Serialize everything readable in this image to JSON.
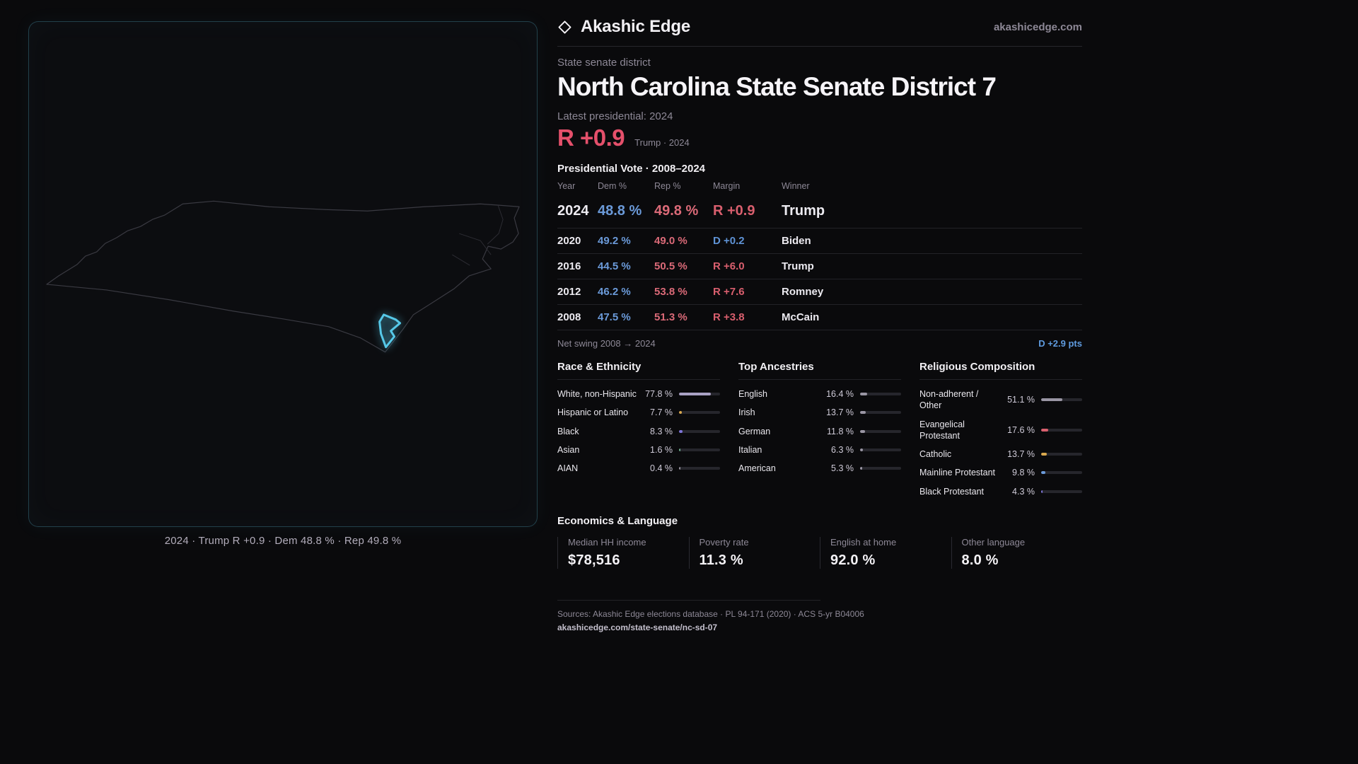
{
  "brand": {
    "name": "Akashic Edge",
    "site": "akashicedge.com",
    "logo_icon": "diamond-icon"
  },
  "map": {
    "caption": "2024 · Trump R +0.9 · Dem 48.8 % · Rep 49.8 %",
    "district_color": "#56c8e8",
    "outline_color": "#3a3a42"
  },
  "header": {
    "kicker": "State senate district",
    "title": "North Carolina State Senate District 7",
    "latest_label": "Latest presidential: 2024",
    "margin_value": "R +0.9",
    "margin_context": "Trump · 2024"
  },
  "vote": {
    "title": "Presidential Vote · 2008–2024",
    "columns": [
      "Year",
      "Dem %",
      "Rep %",
      "Margin",
      "Winner"
    ],
    "rows": [
      {
        "year": "2024",
        "dem": "48.8 %",
        "rep": "49.8 %",
        "margin": "R +0.9",
        "margin_party": "R",
        "winner": "Trump",
        "highlight": true
      },
      {
        "year": "2020",
        "dem": "49.2 %",
        "rep": "49.0 %",
        "margin": "D +0.2",
        "margin_party": "D",
        "winner": "Biden",
        "highlight": false
      },
      {
        "year": "2016",
        "dem": "44.5 %",
        "rep": "50.5 %",
        "margin": "R +6.0",
        "margin_party": "R",
        "winner": "Trump",
        "highlight": false
      },
      {
        "year": "2012",
        "dem": "46.2 %",
        "rep": "53.8 %",
        "margin": "R +7.6",
        "margin_party": "R",
        "winner": "Romney",
        "highlight": false
      },
      {
        "year": "2008",
        "dem": "47.5 %",
        "rep": "51.3 %",
        "margin": "R +3.8",
        "margin_party": "R",
        "winner": "McCain",
        "highlight": false
      }
    ]
  },
  "swing": {
    "label": "Net swing 2008 → 2024",
    "value": "D +2.9 pts"
  },
  "demographics": [
    {
      "title": "Race & Ethnicity",
      "items": [
        {
          "label": "White, non-Hispanic",
          "value": "77.8 %",
          "pct": 77.8,
          "color": "#a9a1c4"
        },
        {
          "label": "Hispanic or Latino",
          "value": "7.7 %",
          "pct": 7.7,
          "color": "#d9a84e"
        },
        {
          "label": "Black",
          "value": "8.3 %",
          "pct": 8.3,
          "color": "#7d74d8"
        },
        {
          "label": "Asian",
          "value": "1.6 %",
          "pct": 1.6,
          "color": "#6fae8f"
        },
        {
          "label": "AIAN",
          "value": "0.4 %",
          "pct": 0.4,
          "color": "#98939f"
        }
      ]
    },
    {
      "title": "Top Ancestries",
      "items": [
        {
          "label": "English",
          "value": "16.4 %",
          "pct": 16.4,
          "color": "#9a96a4"
        },
        {
          "label": "Irish",
          "value": "13.7 %",
          "pct": 13.7,
          "color": "#9a96a4"
        },
        {
          "label": "German",
          "value": "11.8 %",
          "pct": 11.8,
          "color": "#9a96a4"
        },
        {
          "label": "Italian",
          "value": "6.3 %",
          "pct": 6.3,
          "color": "#9a96a4"
        },
        {
          "label": "American",
          "value": "5.3 %",
          "pct": 5.3,
          "color": "#9a96a4"
        }
      ]
    },
    {
      "title": "Religious Composition",
      "items": [
        {
          "label": "Non-adherent / Other",
          "value": "51.1 %",
          "pct": 51.1,
          "color": "#9a96a4"
        },
        {
          "label": "Evangelical Protestant",
          "value": "17.6 %",
          "pct": 17.6,
          "color": "#d9606e"
        },
        {
          "label": "Catholic",
          "value": "13.7 %",
          "pct": 13.7,
          "color": "#d9a84e"
        },
        {
          "label": "Mainline Protestant",
          "value": "9.8 %",
          "pct": 9.8,
          "color": "#6b9ad9"
        },
        {
          "label": "Black Protestant",
          "value": "4.3 %",
          "pct": 4.3,
          "color": "#7d74d8"
        }
      ]
    }
  ],
  "economics": {
    "title": "Economics & Language",
    "stats": [
      {
        "key": "median-hh-income",
        "label": "Median HH income",
        "value": "$78,516"
      },
      {
        "key": "poverty-rate",
        "label": "Poverty rate",
        "value": "11.3 %"
      },
      {
        "key": "english-at-home",
        "label": "English at home",
        "value": "92.0 %"
      },
      {
        "key": "other-language",
        "label": "Other language",
        "value": "8.0 %"
      }
    ]
  },
  "footer": {
    "sources": "Sources: Akashic Edge elections database · PL 94-171 (2020) · ACS 5-yr B04006",
    "link": "akashicedge.com/state-senate/nc-sd-07"
  },
  "colors": {
    "dem": "#6b9ad9",
    "rep": "#db6a78",
    "margin_red": "#e5506b",
    "accent_cyan": "#56c8e8",
    "background": "#0a0a0c"
  }
}
